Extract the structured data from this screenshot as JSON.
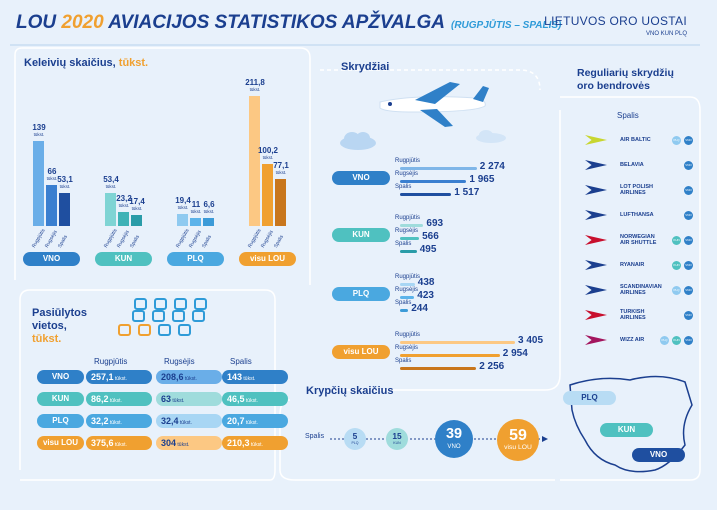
{
  "header": {
    "title_pre": "LOU ",
    "title_year": "2020",
    "title_main": " AVIACIJOS STATISTIKOS APŽVALGA",
    "title_sub": "(RUGPJŪTIS – SPALIS)",
    "logo": "LIETUVOS ORO UOSTAI",
    "logo_sub": "VNO KUN PLQ"
  },
  "passengers": {
    "heading": "Keleivių skaičius,",
    "heading_unit": "tūkst.",
    "unit": "tūkst.",
    "month_labels": [
      "Rugpjūtis",
      "Rugsėjis",
      "Spalis"
    ],
    "groups": [
      {
        "name": "VNO",
        "values": [
          "139",
          "66",
          "53,1"
        ],
        "nums": [
          139,
          66,
          53.1
        ],
        "color": "#2f80c8",
        "colors": [
          "#6aaee8",
          "#3a7fd0",
          "#1f4fa0"
        ]
      },
      {
        "name": "KUN",
        "values": [
          "53,4",
          "23,2",
          "17,4"
        ],
        "nums": [
          53.4,
          23.2,
          17.4
        ],
        "color": "#4fc1c0",
        "colors": [
          "#7fd4d4",
          "#3eb2b6",
          "#2a9ca8"
        ]
      },
      {
        "name": "PLQ",
        "values": [
          "19,4",
          "11",
          "6,6"
        ],
        "nums": [
          19.4,
          11,
          6.6
        ],
        "color": "#4aa8e0",
        "colors": [
          "#8fcaf0",
          "#5cb3ea",
          "#3c9bd8"
        ]
      },
      {
        "name": "visu LOU",
        "values": [
          "211,8",
          "100,2",
          "77,1"
        ],
        "nums": [
          211.8,
          100.2,
          77.1
        ],
        "color": "#f0a030",
        "colors": [
          "#fcc883",
          "#f0a030",
          "#c8761c"
        ]
      }
    ]
  },
  "flights": {
    "heading": "Skrydžiai",
    "groups": [
      {
        "name": "VNO",
        "rows": [
          {
            "month": "Rugpjūtis",
            "value": "2 274",
            "num": 2274
          },
          {
            "month": "Rugsėjis",
            "value": "1 965",
            "num": 1965
          },
          {
            "month": "Spalis",
            "value": "1 517",
            "num": 1517
          }
        ],
        "colors": [
          "#7fb6e8",
          "#3a7fd0",
          "#1f4fa0"
        ],
        "pill": "#2f80c8"
      },
      {
        "name": "KUN",
        "rows": [
          {
            "month": "Rugpjūtis",
            "value": "693",
            "num": 693
          },
          {
            "month": "Rugsėjis",
            "value": "566",
            "num": 566
          },
          {
            "month": "Spalis",
            "value": "495",
            "num": 495
          }
        ],
        "colors": [
          "#9fdcdc",
          "#4fc1c0",
          "#2a9ca8"
        ],
        "pill": "#4fc1c0"
      },
      {
        "name": "PLQ",
        "rows": [
          {
            "month": "Rugpjūtis",
            "value": "438",
            "num": 438
          },
          {
            "month": "Rugsėjis",
            "value": "423",
            "num": 423
          },
          {
            "month": "Spalis",
            "value": "244",
            "num": 244
          }
        ],
        "colors": [
          "#a8d6f4",
          "#5cb3ea",
          "#3c9bd8"
        ],
        "pill": "#4aa8e0"
      },
      {
        "name": "visu LOU",
        "rows": [
          {
            "month": "Rugpjūtis",
            "value": "3 405",
            "num": 3405
          },
          {
            "month": "Rugsėjis",
            "value": "2 954",
            "num": 2954
          },
          {
            "month": "Spalis",
            "value": "2 256",
            "num": 2256
          }
        ],
        "colors": [
          "#fcc883",
          "#f0a030",
          "#c8761c"
        ],
        "pill": "#f0a030"
      }
    ]
  },
  "seats": {
    "heading1": "Pasiūlytos",
    "heading2": "vietos,",
    "heading3": "tūkst.",
    "columns": [
      "Rugpjūtis",
      "Rugsėjis",
      "Spalis"
    ],
    "unit": "tūkst.",
    "rows": [
      {
        "name": "VNO",
        "values": [
          "257,1",
          "208,6",
          "143"
        ],
        "pill": "#2f80c8",
        "cells": [
          "#2f80c8",
          "#6aaee8",
          "#2f80c8"
        ]
      },
      {
        "name": "KUN",
        "values": [
          "86,2",
          "63",
          "46,5"
        ],
        "pill": "#4fc1c0",
        "cells": [
          "#4fc1c0",
          "#9fdcdc",
          "#4fc1c0"
        ]
      },
      {
        "name": "PLQ",
        "values": [
          "32,2",
          "32,4",
          "20,7"
        ],
        "pill": "#4aa8e0",
        "cells": [
          "#4aa8e0",
          "#a8d6f4",
          "#4aa8e0"
        ]
      },
      {
        "name": "visu LOU",
        "values": [
          "375,6",
          "304",
          "210,3"
        ],
        "pill": "#f0a030",
        "cells": [
          "#f0a030",
          "#fcc883",
          "#f0a030"
        ]
      }
    ]
  },
  "directions": {
    "heading": "Krypčių skaičius",
    "month": "Spalis",
    "items": [
      {
        "value": "5",
        "label": "PLQ",
        "color": "#b8dcf4"
      },
      {
        "value": "15",
        "label": "KUN",
        "color": "#9fdcdc"
      },
      {
        "value": "39",
        "label": "VNO",
        "color": "#2f80c8"
      },
      {
        "value": "59",
        "label": "visu LOU",
        "color": "#f0a030"
      }
    ]
  },
  "airlines": {
    "heading1": "Reguliarių skrydžių",
    "heading2": "oro bendrovės",
    "col": "Spalis",
    "list": [
      {
        "name": "AIR BALTIC",
        "name2": "",
        "tags": [
          "PLQ",
          "VNO"
        ]
      },
      {
        "name": "BELAVIA",
        "name2": "",
        "tags": [
          "VNO"
        ]
      },
      {
        "name": "LOT POLISH",
        "name2": "AIRLINES",
        "tags": [
          "VNO"
        ]
      },
      {
        "name": "LUFTHANSA",
        "name2": "",
        "tags": [
          "VNO"
        ]
      },
      {
        "name": "NORWEGIAN",
        "name2": "AIR SHUTTLE",
        "tags": [
          "KUN",
          "VNO"
        ]
      },
      {
        "name": "RYANAIR",
        "name2": "",
        "tags": [
          "KUN",
          "VNO"
        ]
      },
      {
        "name": "SCANDINAVIAN",
        "name2": "AIRLINES",
        "tags": [
          "PLQ",
          "VNO"
        ]
      },
      {
        "name": "TURKISH",
        "name2": "AIRLINES",
        "tags": [
          "VNO"
        ]
      },
      {
        "name": "WIZZ AIR",
        "name2": "",
        "tags": [
          "PLQ",
          "KUN",
          "VNO"
        ]
      }
    ]
  },
  "map": {
    "labels": [
      "PLQ",
      "KUN",
      "VNO"
    ]
  }
}
